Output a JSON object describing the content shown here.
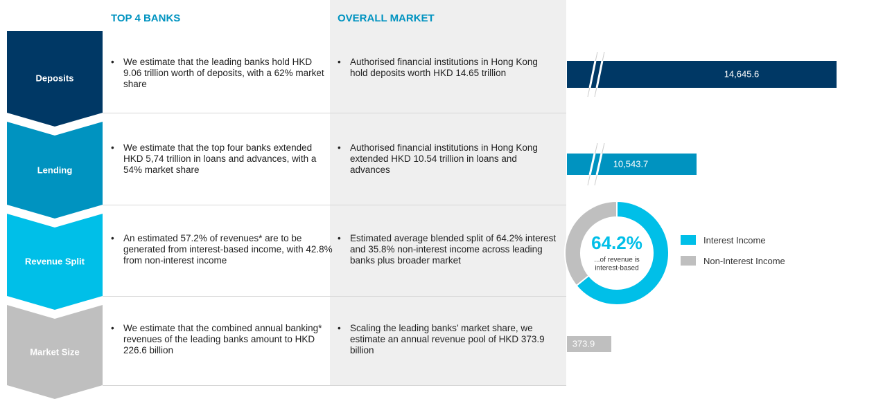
{
  "headers": {
    "top4": "TOP 4 BANKS",
    "market": "OVERALL MARKET"
  },
  "rows": [
    {
      "label": "Deposits",
      "top4": "We estimate that the leading banks hold HKD 9.06 trillion worth of deposits, with a 62% market share",
      "market": "Authorised financial institutions in Hong Kong hold deposits worth HKD 14.65 trillion",
      "bar_label": "14,645.6"
    },
    {
      "label": "Lending",
      "top4": "We estimate that the top four banks extended HKD 5,74 trillion in loans and advances, with a 54% market share",
      "market": "Authorised financial institutions in Hong Kong extended HKD 10.54 trillion in loans and advances",
      "bar_label": "10,543.7"
    },
    {
      "label": "Revenue Split",
      "top4": "An estimated 57.2% of revenues* are to be generated from interest-based income, with 42.8% from non-interest income",
      "market": "Estimated average blended split of 64.2% interest and 35.8% non-interest income across leading banks plus broader market"
    },
    {
      "label": "Market Size",
      "top4": "We estimate that the combined annual banking* revenues of the leading banks amount to HKD 226.6 billion",
      "market": "Scaling the leading banks’ market share, we estimate an annual revenue pool of HKD 373.9 billion",
      "bar_label": "373.9"
    }
  ],
  "donut": {
    "values": [
      64.2,
      35.8
    ],
    "value_label": "64.2%",
    "caption": [
      "...of revenue is",
      "interest-based"
    ],
    "legend": [
      "Interest Income",
      "Non-Interest Income"
    ]
  }
}
